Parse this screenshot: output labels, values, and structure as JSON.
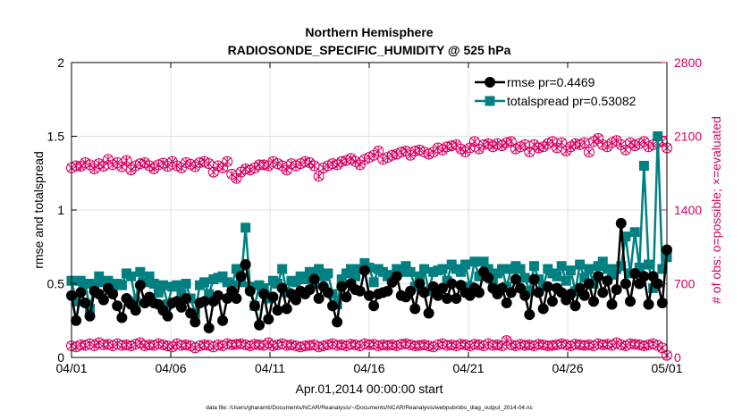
{
  "chart_data": {
    "type": "line",
    "title": "Northern Hemisphere",
    "subtitle": "RADIOSONDE_SPECIFIC_HUMIDITY @ 525 hPa",
    "xlabel": "Apr.01,2014 00:00:00 start",
    "ylabel": "rmse and totalspread",
    "y2label": "# of obs: o=possible; ×=evaluated",
    "footnote": "data file: /Users/gharamti/Documents/NCAR/Reanalysis/~/Documents/NCAR/Reanalysis/webpub/obs_diag_output_2014-04.nc",
    "xlim": [
      0,
      30
    ],
    "ylim": [
      0,
      2
    ],
    "y2lim": [
      0,
      2800
    ],
    "xticks": [
      0,
      5,
      10,
      15,
      20,
      25,
      30
    ],
    "xtick_labels": [
      "04/01",
      "04/06",
      "04/11",
      "04/16",
      "04/21",
      "04/26",
      "05/01"
    ],
    "yticks": [
      0,
      0.5,
      1,
      1.5,
      2
    ],
    "ytick_labels": [
      "0",
      "0.5",
      "1",
      "1.5",
      "2"
    ],
    "y2ticks": [
      0,
      700,
      1400,
      2100,
      2800
    ],
    "y2tick_labels": [
      "0",
      "700",
      "1400",
      "2100",
      "2800"
    ],
    "legend": {
      "position": "top-right",
      "entries": [
        "rmse pr=0.4469",
        "totalspread pr=0.53082"
      ]
    },
    "colors": {
      "rmse": "#000000",
      "totalspread": "#008080",
      "obs": "#d6005f"
    },
    "rmse": [
      0.42,
      0.25,
      0.44,
      0.37,
      0.28,
      0.45,
      0.43,
      0.39,
      0.47,
      0.43,
      0.35,
      0.27,
      0.4,
      0.36,
      0.32,
      0.49,
      0.37,
      0.41,
      0.37,
      0.36,
      0.32,
      0.28,
      0.37,
      0.38,
      0.34,
      0.4,
      0.3,
      0.24,
      0.37,
      0.38,
      0.2,
      0.38,
      0.42,
      0.25,
      0.4,
      0.45,
      0.4,
      0.55,
      0.63,
      0.45,
      0.35,
      0.22,
      0.43,
      0.26,
      0.41,
      0.32,
      0.47,
      0.33,
      0.43,
      0.39,
      0.45,
      0.43,
      0.46,
      0.53,
      0.4,
      0.48,
      0.44,
      0.35,
      0.24,
      0.48,
      0.41,
      0.5,
      0.46,
      0.45,
      0.59,
      0.42,
      0.35,
      0.43,
      0.44,
      0.45,
      0.51,
      0.55,
      0.42,
      0.41,
      0.45,
      0.33,
      0.5,
      0.44,
      0.3,
      0.48,
      0.42,
      0.47,
      0.4,
      0.5,
      0.4,
      0.49,
      0.44,
      0.42,
      0.47,
      0.44,
      0.58,
      0.54,
      0.47,
      0.43,
      0.47,
      0.37,
      0.44,
      0.53,
      0.47,
      0.42,
      0.29,
      0.53,
      0.44,
      0.33,
      0.48,
      0.38,
      0.47,
      0.44,
      0.39,
      0.43,
      0.35,
      0.47,
      0.42,
      0.5,
      0.38,
      0.55,
      0.44,
      0.52,
      0.36,
      0.46,
      0.91,
      0.5,
      0.38,
      0.57,
      0.5,
      0.55,
      0.36,
      0.55,
      0.5,
      0.37,
      0.73
    ],
    "totalspread": [
      0.52,
      0.38,
      0.52,
      0.5,
      0.33,
      0.5,
      0.55,
      0.51,
      0.52,
      0.48,
      0.5,
      0.49,
      0.57,
      0.55,
      0.38,
      0.58,
      0.51,
      0.55,
      0.5,
      0.44,
      0.49,
      0.36,
      0.48,
      0.49,
      0.43,
      0.5,
      0.4,
      0.3,
      0.49,
      0.51,
      0.43,
      0.53,
      0.54,
      0.55,
      0.51,
      0.49,
      0.6,
      0.51,
      0.88,
      0.48,
      0.35,
      0.49,
      0.47,
      0.4,
      0.52,
      0.5,
      0.6,
      0.44,
      0.52,
      0.51,
      0.55,
      0.53,
      0.58,
      0.5,
      0.6,
      0.55,
      0.57,
      0.43,
      0.36,
      0.53,
      0.57,
      0.6,
      0.55,
      0.6,
      0.64,
      0.61,
      0.51,
      0.6,
      0.58,
      0.55,
      0.56,
      0.6,
      0.58,
      0.62,
      0.58,
      0.48,
      0.55,
      0.6,
      0.45,
      0.58,
      0.59,
      0.6,
      0.52,
      0.63,
      0.6,
      0.58,
      0.63,
      0.48,
      0.65,
      0.55,
      0.65,
      0.6,
      0.52,
      0.57,
      0.6,
      0.48,
      0.6,
      0.62,
      0.6,
      0.54,
      0.45,
      0.62,
      0.53,
      0.48,
      0.6,
      0.57,
      0.55,
      0.62,
      0.52,
      0.59,
      0.45,
      0.63,
      0.54,
      0.6,
      0.5,
      0.62,
      0.65,
      0.6,
      0.56,
      0.6,
      0.62,
      0.82,
      0.57,
      0.85,
      0.61,
      1.3,
      0.63,
      0.47,
      1.5,
      0.6,
      0.68
    ],
    "obs_possible": [
      1800,
      1820,
      1815,
      1850,
      1830,
      1790,
      1840,
      1815,
      1880,
      1830,
      1850,
      1810,
      1870,
      1780,
      1820,
      1840,
      1850,
      1820,
      1790,
      1830,
      1845,
      1815,
      1860,
      1820,
      1800,
      1850,
      1835,
      1810,
      1850,
      1860,
      1840,
      1760,
      1820,
      1800,
      1860,
      1740,
      1700,
      1760,
      1790,
      1780,
      1800,
      1830,
      1830,
      1820,
      1860,
      1840,
      1820,
      1780,
      1840,
      1820,
      1840,
      1860,
      1850,
      1820,
      1720,
      1800,
      1820,
      1840,
      1830,
      1860,
      1870,
      1890,
      1860,
      1830,
      1880,
      1900,
      1920,
      1960,
      1880,
      1900,
      1920,
      1930,
      1950,
      1960,
      1920,
      1960,
      1970,
      1950,
      1930,
      1950,
      1990,
      1970,
      2000,
      2010,
      2020,
      1980,
      1950,
      1990,
      2050,
      1980,
      2020,
      2030,
      2000,
      2030,
      2010,
      2040,
      2050,
      1980,
      2000,
      2020,
      1950,
      2020,
      1990,
      2000,
      2030,
      2050,
      1990,
      2040,
      1960,
      2000,
      2030,
      2020,
      2040,
      1950,
      2050,
      2080,
      2020,
      2000,
      2040,
      2060,
      2020,
      1970,
      2040,
      2010,
      2030,
      2050,
      2000,
      2020,
      2040,
      2050,
      1990
    ],
    "obs_evaluated": [
      1800,
      1820,
      1815,
      1850,
      1830,
      1790,
      1840,
      1815,
      1880,
      1830,
      1850,
      1810,
      1870,
      1780,
      1820,
      1840,
      1850,
      1820,
      1790,
      1830,
      1845,
      1815,
      1860,
      1820,
      1800,
      1850,
      1835,
      1810,
      1850,
      1860,
      1840,
      1760,
      1820,
      1800,
      1860,
      1740,
      1700,
      1760,
      1790,
      1780,
      1800,
      1830,
      1830,
      1820,
      1860,
      1840,
      1820,
      1780,
      1840,
      1820,
      1840,
      1860,
      1850,
      1820,
      1720,
      1800,
      1820,
      1840,
      1830,
      1860,
      1870,
      1890,
      1860,
      1830,
      1880,
      1900,
      1920,
      1960,
      1880,
      1900,
      1920,
      1930,
      1950,
      1960,
      1920,
      1960,
      1970,
      1950,
      1930,
      1950,
      1990,
      1970,
      2000,
      2010,
      2020,
      1980,
      1950,
      1990,
      2050,
      1980,
      2020,
      2030,
      2000,
      2030,
      2010,
      2040,
      2050,
      1980,
      2000,
      2020,
      1950,
      2020,
      1990,
      2000,
      2030,
      2050,
      1990,
      2040,
      1960,
      2000,
      2030,
      2020,
      2040,
      1950,
      2050,
      2080,
      2020,
      2000,
      2040,
      2060,
      2020,
      1970,
      2040,
      2010,
      2030,
      2050,
      2000,
      2020,
      2040,
      2050,
      1990
    ],
    "rejected_possible": [
      110,
      100,
      120,
      115,
      130,
      110,
      140,
      120,
      125,
      110,
      130,
      115,
      120,
      110,
      125,
      140,
      110,
      120,
      115,
      130,
      120,
      110,
      100,
      130,
      115,
      120,
      110,
      90,
      110,
      120,
      115,
      100,
      120,
      110,
      130,
      120,
      125,
      130,
      120,
      110,
      125,
      120,
      115,
      140,
      110,
      120,
      130,
      115,
      120,
      110,
      100,
      110,
      115,
      120,
      100,
      110,
      120,
      130,
      115,
      120,
      110,
      125,
      120,
      110,
      130,
      120,
      125,
      110,
      120,
      115,
      120,
      110,
      125,
      130,
      120,
      110,
      115,
      120,
      110,
      100,
      120,
      130,
      115,
      120,
      110,
      125,
      120,
      110,
      125,
      120,
      110,
      130,
      115,
      120,
      110,
      160,
      120,
      110,
      125,
      115,
      120,
      110,
      125,
      120,
      110,
      115,
      120,
      130,
      120,
      110,
      125,
      120,
      115,
      120,
      110,
      130,
      120,
      125,
      115,
      140,
      120,
      110,
      130,
      125,
      120,
      110,
      120,
      130,
      115,
      90,
      20
    ],
    "rejected_evaluated": [
      110,
      100,
      120,
      115,
      130,
      110,
      140,
      120,
      125,
      110,
      130,
      115,
      120,
      110,
      125,
      140,
      110,
      120,
      115,
      130,
      120,
      110,
      100,
      130,
      115,
      120,
      110,
      90,
      110,
      120,
      115,
      100,
      120,
      110,
      130,
      120,
      125,
      130,
      120,
      110,
      125,
      120,
      115,
      140,
      110,
      120,
      130,
      115,
      120,
      110,
      100,
      110,
      115,
      120,
      100,
      110,
      120,
      130,
      115,
      120,
      110,
      125,
      120,
      110,
      130,
      120,
      125,
      110,
      120,
      115,
      120,
      110,
      125,
      130,
      120,
      110,
      115,
      120,
      110,
      100,
      120,
      130,
      115,
      120,
      110,
      125,
      120,
      110,
      125,
      120,
      110,
      130,
      115,
      120,
      110,
      160,
      120,
      110,
      125,
      115,
      120,
      110,
      125,
      120,
      110,
      115,
      120,
      130,
      120,
      110,
      125,
      120,
      115,
      120,
      110,
      130,
      120,
      125,
      115,
      140,
      120,
      110,
      130,
      125,
      120,
      110,
      120,
      130,
      115,
      90,
      20
    ]
  }
}
